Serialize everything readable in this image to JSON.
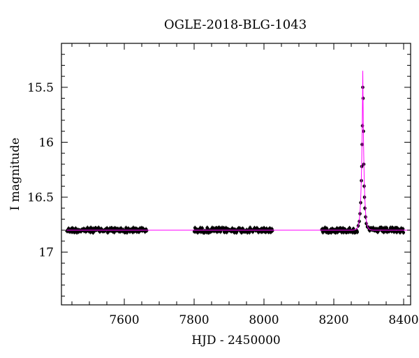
{
  "chart_data": {
    "type": "scatter",
    "title": "OGLE-2018-BLG-1043",
    "xlabel": "HJD - 2450000",
    "ylabel": "I magnitude",
    "xlim": [
      7420,
      8420
    ],
    "ylim": [
      17.48,
      15.1
    ],
    "y_inverted": true,
    "grid": false,
    "xticks": [
      7600,
      7800,
      8000,
      8200,
      8400
    ],
    "xtick_labels": [
      "7600",
      "7800",
      "8000",
      "8200",
      "8400"
    ],
    "yticks": [
      15.5,
      16,
      16.5,
      17
    ],
    "ytick_labels": [
      "15.5",
      "16",
      "16.5",
      "17"
    ],
    "baseline_mag": 16.8,
    "seasons": [
      [
        7435,
        7665
      ],
      [
        7800,
        8025
      ],
      [
        8165,
        8268
      ],
      [
        8300,
        8400
      ]
    ],
    "peak": {
      "t0": 8283,
      "peak_mag": 15.35,
      "width_days": 7
    },
    "series": [
      {
        "kind": "data",
        "color": "#000000",
        "points": [
          [
            8270,
            16.76
          ],
          [
            8273,
            16.72
          ],
          [
            8275,
            16.65
          ],
          [
            8277,
            16.55
          ],
          [
            8279,
            16.35
          ],
          [
            8280,
            16.22
          ],
          [
            8281,
            16.02
          ],
          [
            8282,
            15.85
          ],
          [
            8283,
            15.5
          ],
          [
            8284,
            15.6
          ],
          [
            8285,
            15.9
          ],
          [
            8286,
            16.2
          ],
          [
            8287,
            16.4
          ],
          [
            8288,
            16.5
          ],
          [
            8289,
            16.6
          ],
          [
            8291,
            16.68
          ],
          [
            8293,
            16.74
          ],
          [
            8296,
            16.77
          ]
        ]
      },
      {
        "kind": "model",
        "color": "#ff00ff"
      }
    ]
  }
}
